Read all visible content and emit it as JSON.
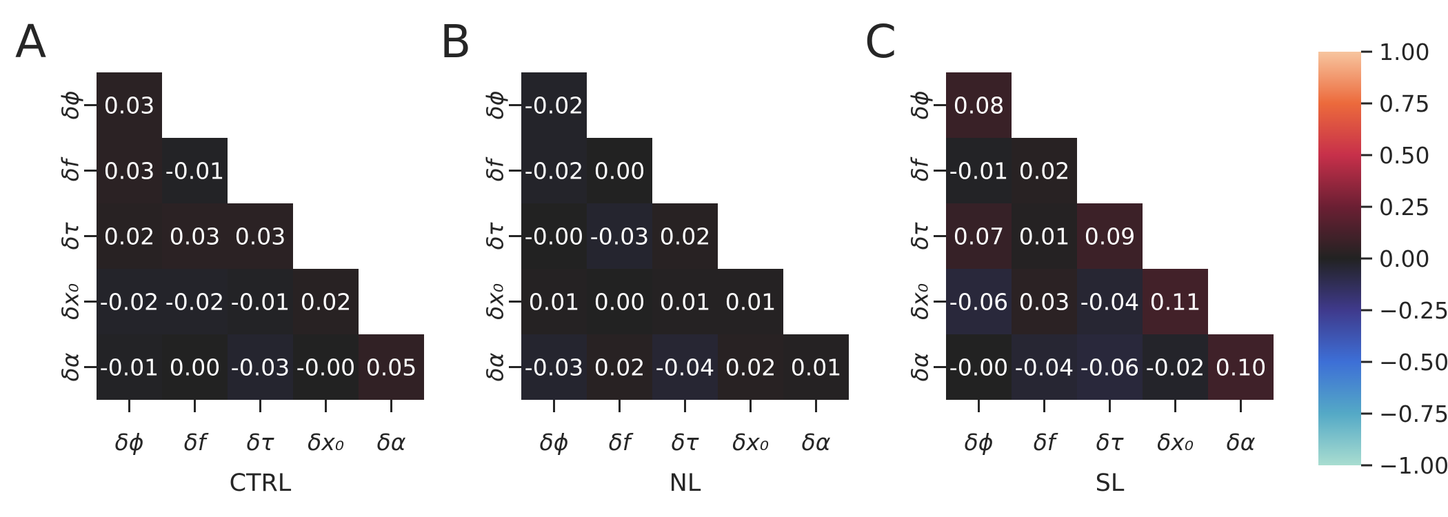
{
  "chart_data": [
    {
      "type": "heatmap",
      "panel": "A",
      "xlabel": "CTRL",
      "labels": [
        "δϕ",
        "δf",
        "δτ",
        "δx₀",
        "δα"
      ],
      "matrix": [
        [
          0.03,
          null,
          null,
          null,
          null
        ],
        [
          0.03,
          -0.01,
          null,
          null,
          null
        ],
        [
          0.02,
          0.03,
          0.03,
          null,
          null
        ],
        [
          -0.02,
          -0.02,
          -0.01,
          0.02,
          null
        ],
        [
          -0.01,
          0.0,
          -0.03,
          -0.0,
          0.05
        ]
      ]
    },
    {
      "type": "heatmap",
      "panel": "B",
      "xlabel": "NL",
      "labels": [
        "δϕ",
        "δf",
        "δτ",
        "δx₀",
        "δα"
      ],
      "matrix": [
        [
          -0.02,
          null,
          null,
          null,
          null
        ],
        [
          -0.02,
          0.0,
          null,
          null,
          null
        ],
        [
          -0.0,
          -0.03,
          0.02,
          null,
          null
        ],
        [
          0.01,
          0.0,
          0.01,
          0.01,
          null
        ],
        [
          -0.03,
          0.02,
          -0.04,
          0.02,
          0.01
        ]
      ]
    },
    {
      "type": "heatmap",
      "panel": "C",
      "xlabel": "SL",
      "labels": [
        "δϕ",
        "δf",
        "δτ",
        "δx₀",
        "δα"
      ],
      "matrix": [
        [
          0.08,
          null,
          null,
          null,
          null
        ],
        [
          -0.01,
          0.02,
          null,
          null,
          null
        ],
        [
          0.07,
          0.01,
          0.09,
          null,
          null
        ],
        [
          -0.06,
          0.03,
          -0.04,
          0.11,
          null
        ],
        [
          -0.0,
          -0.04,
          -0.06,
          -0.02,
          0.1
        ]
      ]
    }
  ],
  "colorbar": {
    "range": [
      -1.0,
      1.0
    ],
    "ticks": [
      "1.00",
      "0.75",
      "0.50",
      "0.25",
      "0.00",
      "−0.25",
      "−0.50",
      "−0.75",
      "−1.00"
    ],
    "colors": [
      "#a9ddd0",
      "#54a9c6",
      "#3d6fd6",
      "#3f3a8c",
      "#222222",
      "#6b1f33",
      "#c7304a",
      "#ec6a3c",
      "#f7c59f"
    ]
  }
}
